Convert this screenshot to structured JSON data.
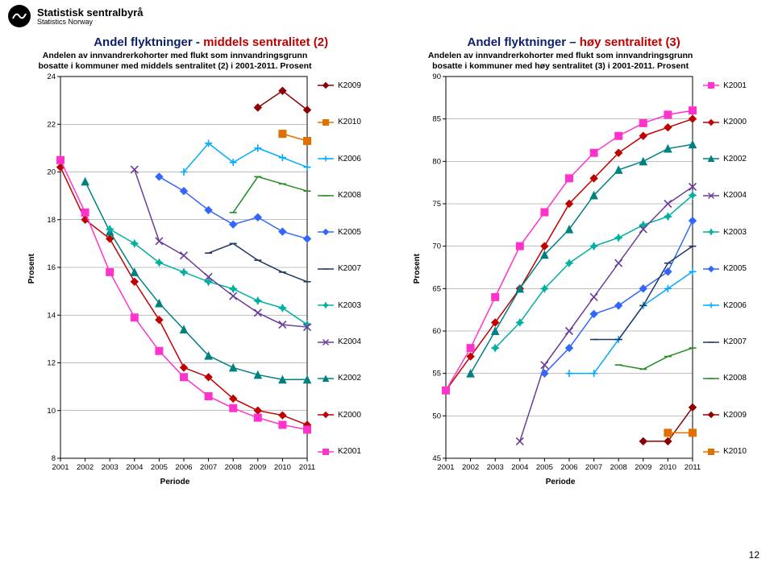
{
  "brand": {
    "name": "Statistisk sentralbyrå",
    "sub": "Statistics Norway"
  },
  "titleLeft": {
    "black": "Andel flyktninger - ",
    "red": "middels sentralitet (2)"
  },
  "titleRight": {
    "black": "Andel flyktninger – ",
    "red": "høy sentralitet (3)"
  },
  "pageNumber": "12",
  "axisLabelY": "Prosent",
  "axisLabelX": "Periode",
  "chartLeft": {
    "subtitle": "Andelen av innvandrerkohorter med flukt som innvandringsgrunn bosatte i kommuner med middels sentralitet (2) i 2001-2011. Prosent",
    "plotW": 340,
    "plotH": 500,
    "xDomain": [
      2001,
      2011
    ],
    "yDomain": [
      8,
      24
    ],
    "xTicks": [
      2001,
      2002,
      2003,
      2004,
      2005,
      2006,
      2007,
      2008,
      2009,
      2010,
      2011
    ],
    "yTicks": [
      8,
      10,
      12,
      14,
      16,
      18,
      20,
      22,
      24
    ],
    "yGrid": true,
    "legendOrder": [
      "K2009",
      "K2010",
      "K2006",
      "K2008",
      "K2005",
      "K2007",
      "K2003",
      "K2004",
      "K2002",
      "K2000",
      "K2001"
    ],
    "series": {
      "K2000": {
        "start": 2001,
        "y": [
          20.2,
          18.0,
          17.2,
          15.4,
          13.8,
          11.8,
          11.4,
          10.5,
          10.0,
          9.8,
          9.4
        ]
      },
      "K2001": {
        "start": 2001,
        "y": [
          20.5,
          18.3,
          15.8,
          13.9,
          12.5,
          11.4,
          10.6,
          10.1,
          9.7,
          9.4,
          9.2
        ]
      },
      "K2002": {
        "start": 2002,
        "y": [
          19.6,
          17.5,
          15.8,
          14.5,
          13.4,
          12.3,
          11.8,
          11.5,
          11.3,
          11.3
        ]
      },
      "K2003": {
        "start": 2003,
        "y": [
          17.6,
          17.0,
          16.2,
          15.8,
          15.4,
          15.1,
          14.6,
          14.3,
          13.6
        ]
      },
      "K2004": {
        "start": 2004,
        "y": [
          20.1,
          17.1,
          16.5,
          15.6,
          14.8,
          14.1,
          13.6,
          13.5
        ]
      },
      "K2005": {
        "start": 2005,
        "y": [
          19.8,
          19.2,
          18.4,
          17.8,
          18.1,
          17.5,
          17.2
        ]
      },
      "K2006": {
        "start": 2006,
        "y": [
          20.0,
          21.2,
          20.4,
          21.0,
          20.6,
          20.2
        ]
      },
      "K2007": {
        "start": 2007,
        "y": [
          16.6,
          17.0,
          16.3,
          15.8,
          15.4
        ]
      },
      "K2008": {
        "start": 2008,
        "y": [
          18.3,
          19.8,
          19.5,
          19.2
        ]
      },
      "K2009": {
        "start": 2009,
        "y": [
          22.7,
          23.4,
          22.6
        ]
      },
      "K2010": {
        "start": 2010,
        "y": [
          21.6,
          21.3
        ]
      }
    }
  },
  "chartRight": {
    "subtitle": "Andelen av innvandrerkohorter med flukt som innvandringsgrunn bosatte i kommuner med høy sentralitet (3) i 2001-2011. Prosent",
    "plotW": 340,
    "plotH": 500,
    "xDomain": [
      2001,
      2011
    ],
    "yDomain": [
      45,
      90
    ],
    "xTicks": [
      2001,
      2002,
      2003,
      2004,
      2005,
      2006,
      2007,
      2008,
      2009,
      2010,
      2011
    ],
    "yTicks": [
      45,
      50,
      55,
      60,
      65,
      70,
      75,
      80,
      85,
      90
    ],
    "yGrid": true,
    "legendOrder": [
      "K2001",
      "K2000",
      "K2002",
      "K2004",
      "K2003",
      "K2005",
      "K2006",
      "K2007",
      "K2008",
      "K2009",
      "K2010"
    ],
    "series": {
      "K2000": {
        "start": 2001,
        "y": [
          53,
          57,
          61,
          65,
          70,
          75,
          78,
          81,
          83,
          84,
          85
        ]
      },
      "K2001": {
        "start": 2001,
        "y": [
          53,
          58,
          64,
          70,
          74,
          78,
          81,
          83,
          84.5,
          85.5,
          86
        ]
      },
      "K2002": {
        "start": 2002,
        "y": [
          55,
          60,
          65,
          69,
          72,
          76,
          79,
          80,
          81.5,
          82
        ]
      },
      "K2003": {
        "start": 2003,
        "y": [
          58,
          61,
          65,
          68,
          70,
          71,
          72.5,
          73.5,
          76
        ]
      },
      "K2004": {
        "start": 2004,
        "y": [
          47,
          56,
          60,
          64,
          68,
          72,
          75,
          77
        ]
      },
      "K2005": {
        "start": 2005,
        "y": [
          55,
          58,
          62,
          63,
          65,
          67,
          73
        ]
      },
      "K2006": {
        "start": 2006,
        "y": [
          55,
          55,
          59,
          63,
          65,
          67
        ]
      },
      "K2007": {
        "start": 2007,
        "y": [
          59,
          59,
          63,
          68,
          70
        ]
      },
      "K2008": {
        "start": 2008,
        "y": [
          56,
          55.5,
          57,
          58
        ]
      },
      "K2009": {
        "start": 2009,
        "y": [
          47,
          47,
          51
        ]
      },
      "K2010": {
        "start": 2010,
        "y": [
          48,
          48
        ]
      }
    }
  },
  "style": {
    "bg": "#ffffff",
    "axisColor": "#000000",
    "gridColor": "#808080",
    "markerSize": 4.5,
    "lineWidth": 1.5,
    "colors": {
      "K2000": "#c00000",
      "K2001": "#ff33cc",
      "K2002": "#008080",
      "K2003": "#00b0a0",
      "K2004": "#6a3d9a",
      "K2005": "#3366ff",
      "K2006": "#00aaff",
      "K2007": "#1f3864",
      "K2008": "#228b22",
      "K2009": "#8b0000",
      "K2010": "#e07000"
    },
    "markers": {
      "K2000": "diamond",
      "K2001": "square",
      "K2002": "triangle",
      "K2003": "star",
      "K2004": "x",
      "K2005": "diamond",
      "K2006": "plus",
      "K2007": "dash",
      "K2008": "line",
      "K2009": "diamond",
      "K2010": "square"
    }
  }
}
